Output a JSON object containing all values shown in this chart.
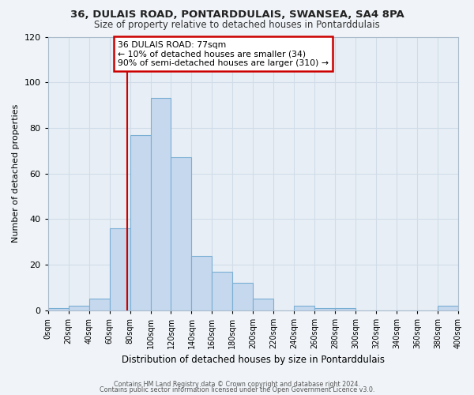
{
  "title": "36, DULAIS ROAD, PONTARDDULAIS, SWANSEA, SA4 8PA",
  "subtitle": "Size of property relative to detached houses in Pontarddulais",
  "xlabel": "Distribution of detached houses by size in Pontarddulais",
  "ylabel": "Number of detached properties",
  "bar_starts": [
    0,
    20,
    40,
    60,
    80,
    100,
    120,
    140,
    160,
    180,
    200,
    220,
    240,
    260,
    280,
    300,
    320,
    340,
    360,
    380
  ],
  "bar_heights": [
    1,
    2,
    5,
    36,
    77,
    93,
    67,
    24,
    17,
    12,
    5,
    0,
    2,
    1,
    1,
    0,
    0,
    0,
    0,
    2
  ],
  "bin_width": 20,
  "bar_color": "#c5d8ee",
  "bar_edge_color": "#7aafd4",
  "ylim": [
    0,
    120
  ],
  "yticks": [
    0,
    20,
    40,
    60,
    80,
    100,
    120
  ],
  "xtick_labels": [
    "0sqm",
    "20sqm",
    "40sqm",
    "60sqm",
    "80sqm",
    "100sqm",
    "120sqm",
    "140sqm",
    "160sqm",
    "180sqm",
    "200sqm",
    "220sqm",
    "240sqm",
    "260sqm",
    "280sqm",
    "300sqm",
    "320sqm",
    "340sqm",
    "360sqm",
    "380sqm",
    "400sqm"
  ],
  "annotation_text": "36 DULAIS ROAD: 77sqm\n← 10% of detached houses are smaller (34)\n90% of semi-detached houses are larger (310) →",
  "annotation_box_color": "#ffffff",
  "annotation_box_edge": "#cc0000",
  "vline_x": 77,
  "vline_color": "#cc0000",
  "grid_color": "#d0dce8",
  "plot_bg_color": "#e8eef5",
  "fig_bg_color": "#f0f4f8",
  "footer_line1": "Contains HM Land Registry data © Crown copyright and database right 2024.",
  "footer_line2": "Contains public sector information licensed under the Open Government Licence v3.0."
}
